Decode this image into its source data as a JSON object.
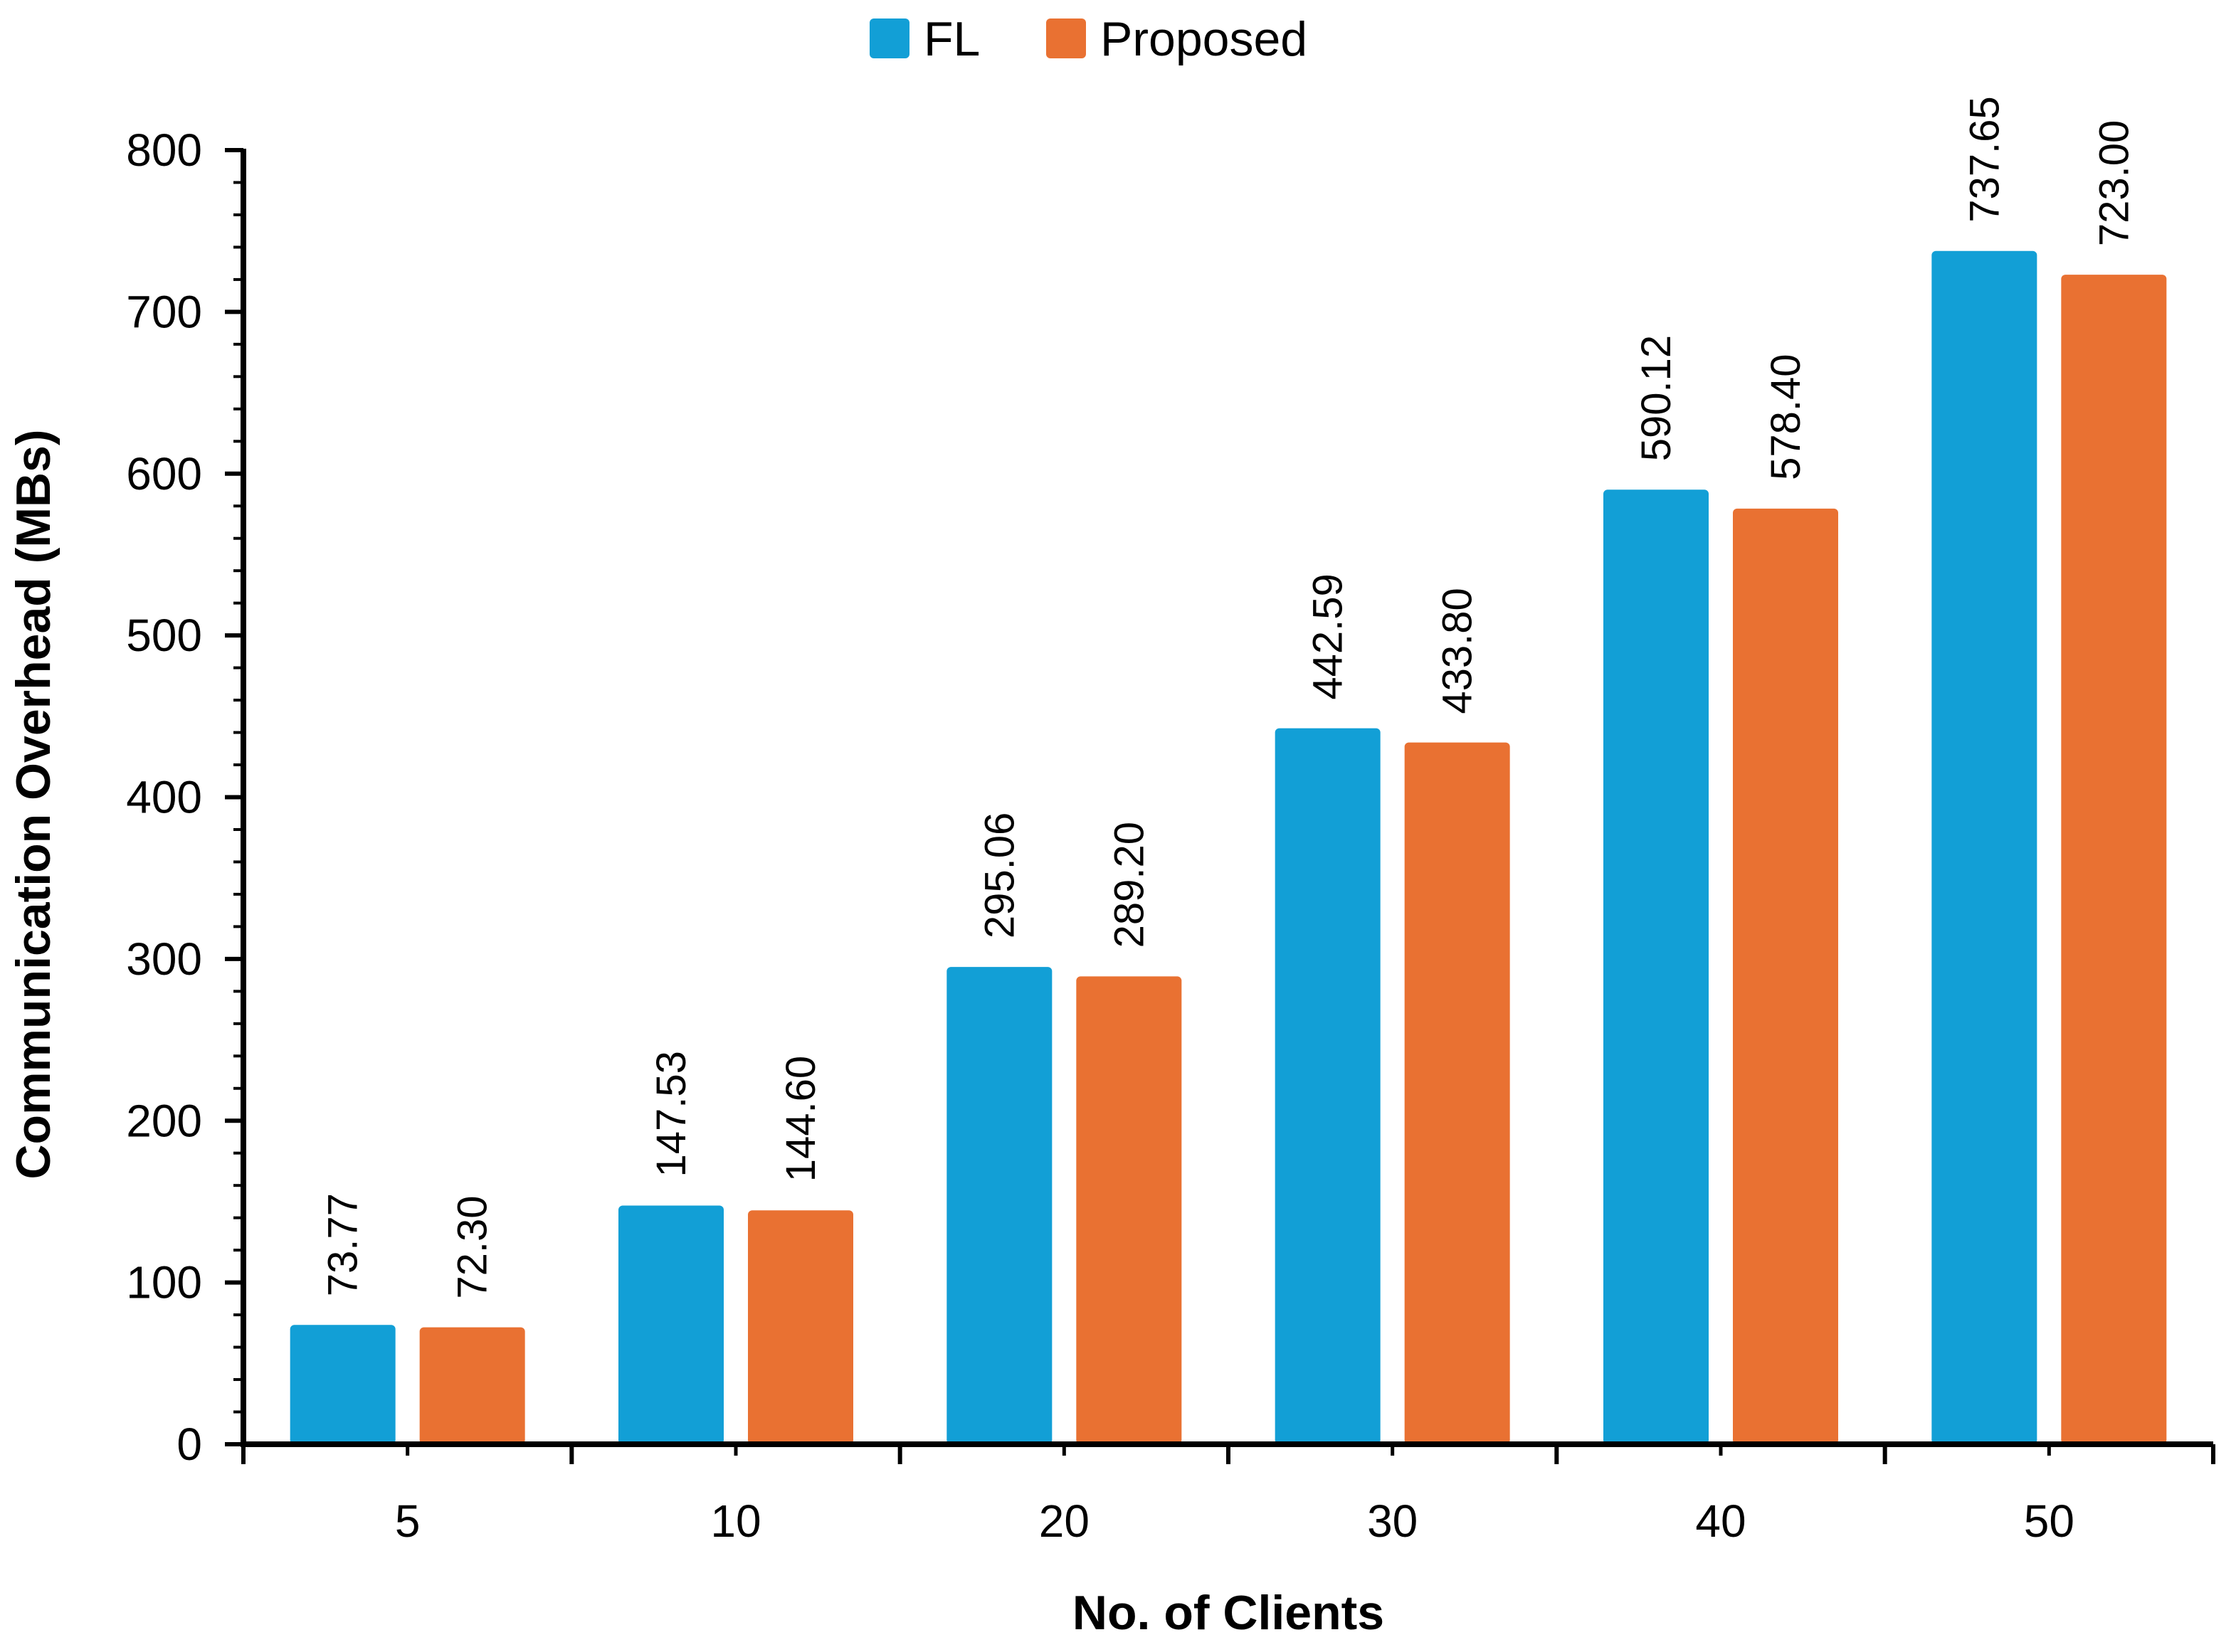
{
  "chart_data": {
    "type": "bar",
    "title": "",
    "xlabel": "No. of Clients",
    "ylabel": "Communication Overhead (MBs)",
    "categories": [
      "5",
      "10",
      "20",
      "30",
      "40",
      "50"
    ],
    "series": [
      {
        "name": "FL",
        "color": "#129FD6",
        "values": [
          73.77,
          147.53,
          295.06,
          442.59,
          590.12,
          737.65
        ],
        "labels": [
          "73.77",
          "147.53",
          "295.06",
          "442.59",
          "590.12",
          "737.65"
        ]
      },
      {
        "name": "Proposed",
        "color": "#E97132",
        "values": [
          72.3,
          144.6,
          289.2,
          433.8,
          578.4,
          723.0
        ],
        "labels": [
          "72.30",
          "144.60",
          "289.20",
          "433.80",
          "578.40",
          "723.00"
        ]
      }
    ],
    "ylim": [
      0,
      800
    ],
    "yticks": [
      0,
      100,
      200,
      300,
      400,
      500,
      600,
      700,
      800
    ],
    "ytick_labels": [
      "0",
      "100",
      "200",
      "300",
      "400",
      "500",
      "600",
      "700",
      "800"
    ],
    "minor_ticks_per_major": 5,
    "grid": false,
    "legend_position": "top-center",
    "axis_color": "#000000"
  }
}
